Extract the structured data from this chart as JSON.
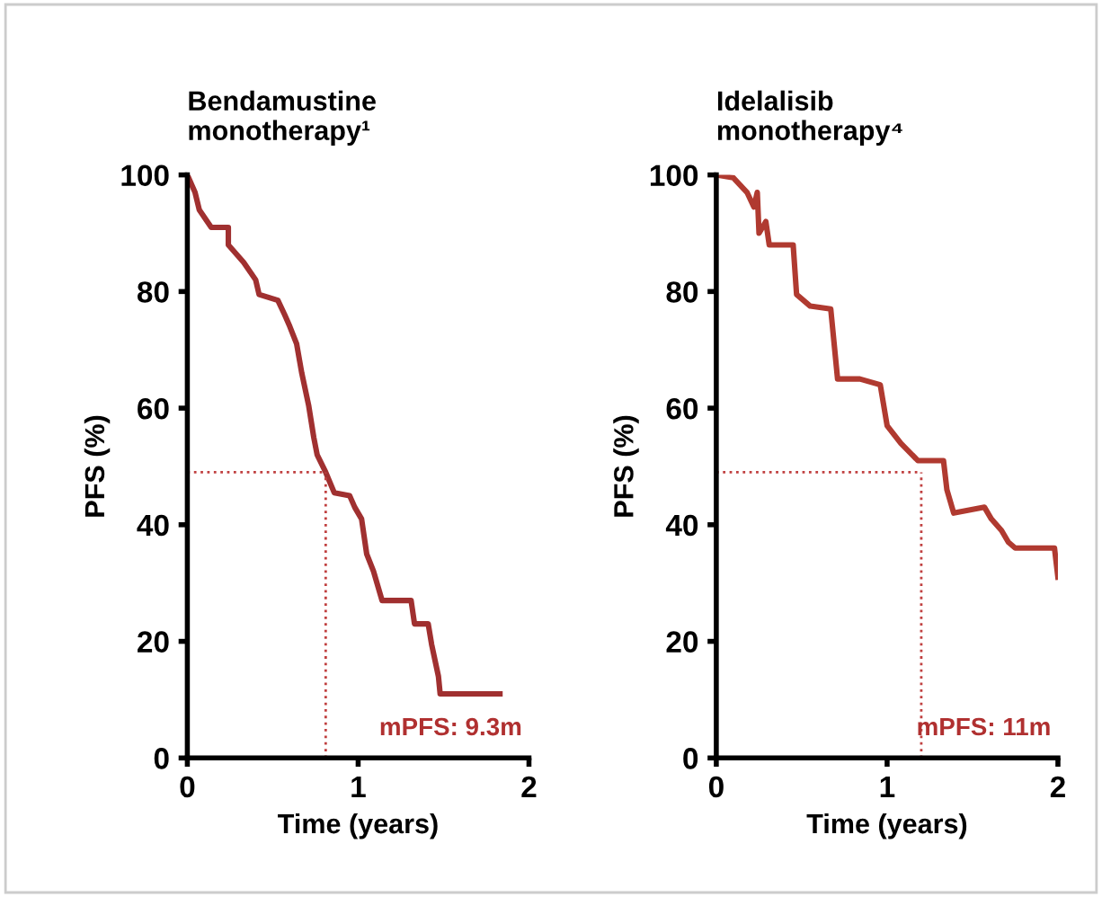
{
  "chart_data": [
    {
      "type": "line",
      "title": "Bendamustine\nmonotherapy¹",
      "xlabel": "Time (years)",
      "ylabel": "PFS (%)",
      "xlim": [
        0,
        2
      ],
      "ylim": [
        0,
        100
      ],
      "xticks": [
        0,
        1,
        2
      ],
      "yticks": [
        0,
        20,
        40,
        60,
        80,
        100
      ],
      "grid": false,
      "legend": false,
      "series": [
        {
          "color": "#a03030",
          "x": [
            0,
            0.045,
            0.07,
            0.14,
            0.24,
            0.24,
            0.33,
            0.4,
            0.42,
            0.53,
            0.57,
            0.6,
            0.64,
            0.67,
            0.71,
            0.74,
            0.76,
            0.81,
            0.86,
            0.95,
            0.98,
            1.02,
            1.05,
            1.09,
            1.12,
            1.14,
            1.31,
            1.33,
            1.41,
            1.43,
            1.47,
            1.48,
            1.83
          ],
          "values": [
            100,
            97,
            94,
            91,
            91,
            88,
            85,
            82,
            79.5,
            78.5,
            76,
            74,
            71,
            66,
            60.5,
            55,
            52,
            49,
            45.5,
            45,
            43,
            41,
            35,
            32,
            29,
            27,
            27,
            23,
            23,
            19.5,
            14,
            11,
            11
          ]
        }
      ],
      "ref_lines": [
        {
          "axis": "y",
          "value": 49,
          "color": "#c04040",
          "line_style": "dotted"
        },
        {
          "axis": "x",
          "value": 0.81,
          "color": "#c04040",
          "line_style": "dotted"
        }
      ],
      "annotations": [
        "mPFS: 9.3m"
      ]
    },
    {
      "type": "line",
      "title": "Idelalisib\nmonotherapy⁴",
      "xlabel": "Time (years)",
      "ylabel": "PFS (%)",
      "xlim": [
        0,
        2
      ],
      "ylim": [
        0,
        100
      ],
      "xticks": [
        0,
        1,
        2
      ],
      "yticks": [
        0,
        20,
        40,
        60,
        80,
        100
      ],
      "grid": false,
      "legend": false,
      "series": [
        {
          "color": "#b03a30",
          "x": [
            0,
            0.1,
            0.18,
            0.22,
            0.24,
            0.25,
            0.29,
            0.31,
            0.45,
            0.47,
            0.55,
            0.67,
            0.71,
            0.84,
            0.96,
            1.0,
            1.08,
            1.18,
            1.33,
            1.35,
            1.39,
            1.57,
            1.61,
            1.67,
            1.71,
            1.75,
            1.98,
            2.0
          ],
          "values": [
            100,
            99.5,
            97,
            94.5,
            97,
            90,
            92,
            88,
            88,
            79.5,
            77.5,
            77,
            65,
            65,
            64,
            57,
            54,
            51,
            51,
            46,
            42,
            43,
            41,
            39,
            37,
            36,
            36,
            31
          ]
        }
      ],
      "ref_lines": [
        {
          "axis": "y",
          "value": 49,
          "color": "#c04040",
          "line_style": "dotted"
        },
        {
          "axis": "x",
          "value": 1.2,
          "color": "#c04040",
          "line_style": "dotted"
        }
      ],
      "annotations": [
        "mPFS: 11m"
      ]
    }
  ]
}
